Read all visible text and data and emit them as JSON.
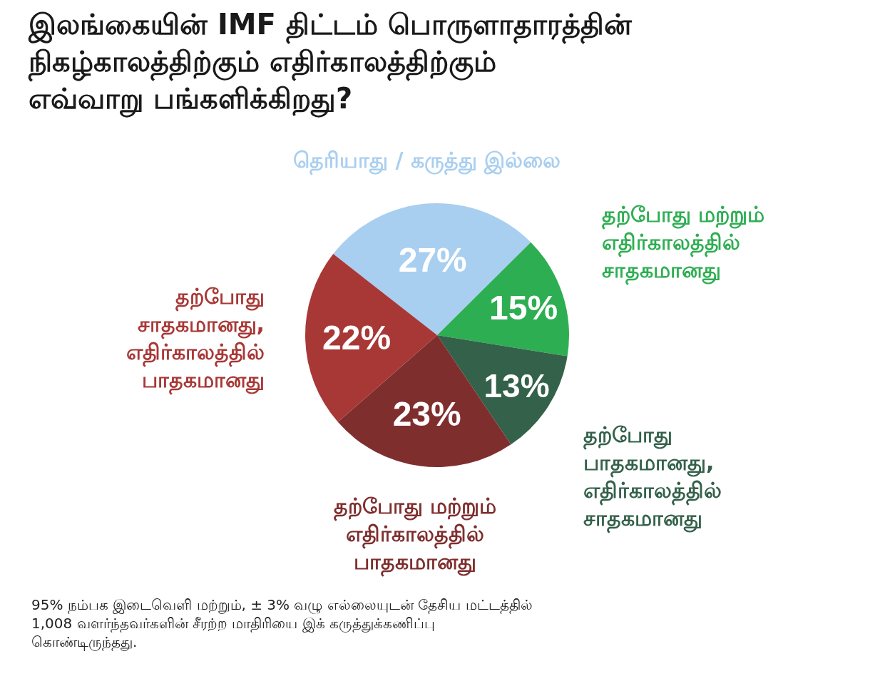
{
  "chart_data": {
    "type": "pie",
    "title": "இலங்கையின் IMF திட்டம் பொருளாதாரத்தின் நிகழ்காலத்திற்கும் எதிர்காலத்திற்கும் எவ்வாறு பங்களிக்கிறது?",
    "categories": [
      "தெரியாது / கருத்து இல்லை",
      "தற்போது மற்றும் எதிர்காலத்தில் சாதகமானது",
      "தற்போது பாதகமானது, எதிர்காலத்தில் சாதகமானது",
      "தற்போது மற்றும் எதிர்காலத்தில் பாதகமானது",
      "தற்போது சாதகமானது, எதிர்காலத்தில் பாதகமானது"
    ],
    "values": [
      27,
      15,
      13,
      23,
      22
    ],
    "value_labels": [
      "27%",
      "15%",
      "13%",
      "23%",
      "22%"
    ],
    "colors": [
      "#a9cff0",
      "#2eae52",
      "#34614a",
      "#7f2e2e",
      "#a83836"
    ],
    "annotations": [
      "95% நம்பக இடைவெளி மற்றும், ± 3% வழு எல்லையுடன் தேசிய மட்டத்தில் 1,008 வளர்ந்தவர்களின் சீரற்ற மாதிரியை இக் கருத்துக்கணிப்பு கொண்டிருந்தது."
    ]
  }
}
